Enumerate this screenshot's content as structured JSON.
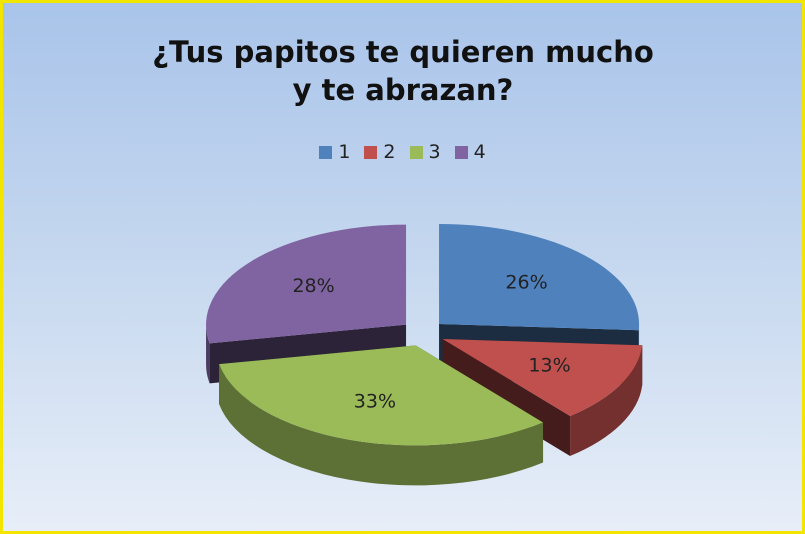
{
  "chart_data": {
    "type": "pie3d",
    "title": "¿Tus papitos te quieren mucho y te abrazan?",
    "categories": [
      "1",
      "2",
      "3",
      "4"
    ],
    "values": [
      26,
      13,
      33,
      28
    ],
    "value_labels": [
      "26%",
      "13%",
      "33%",
      "28%"
    ],
    "colors": [
      "#4f81bd",
      "#c0504d",
      "#9bbb59",
      "#8064a2"
    ],
    "legend": "top"
  }
}
